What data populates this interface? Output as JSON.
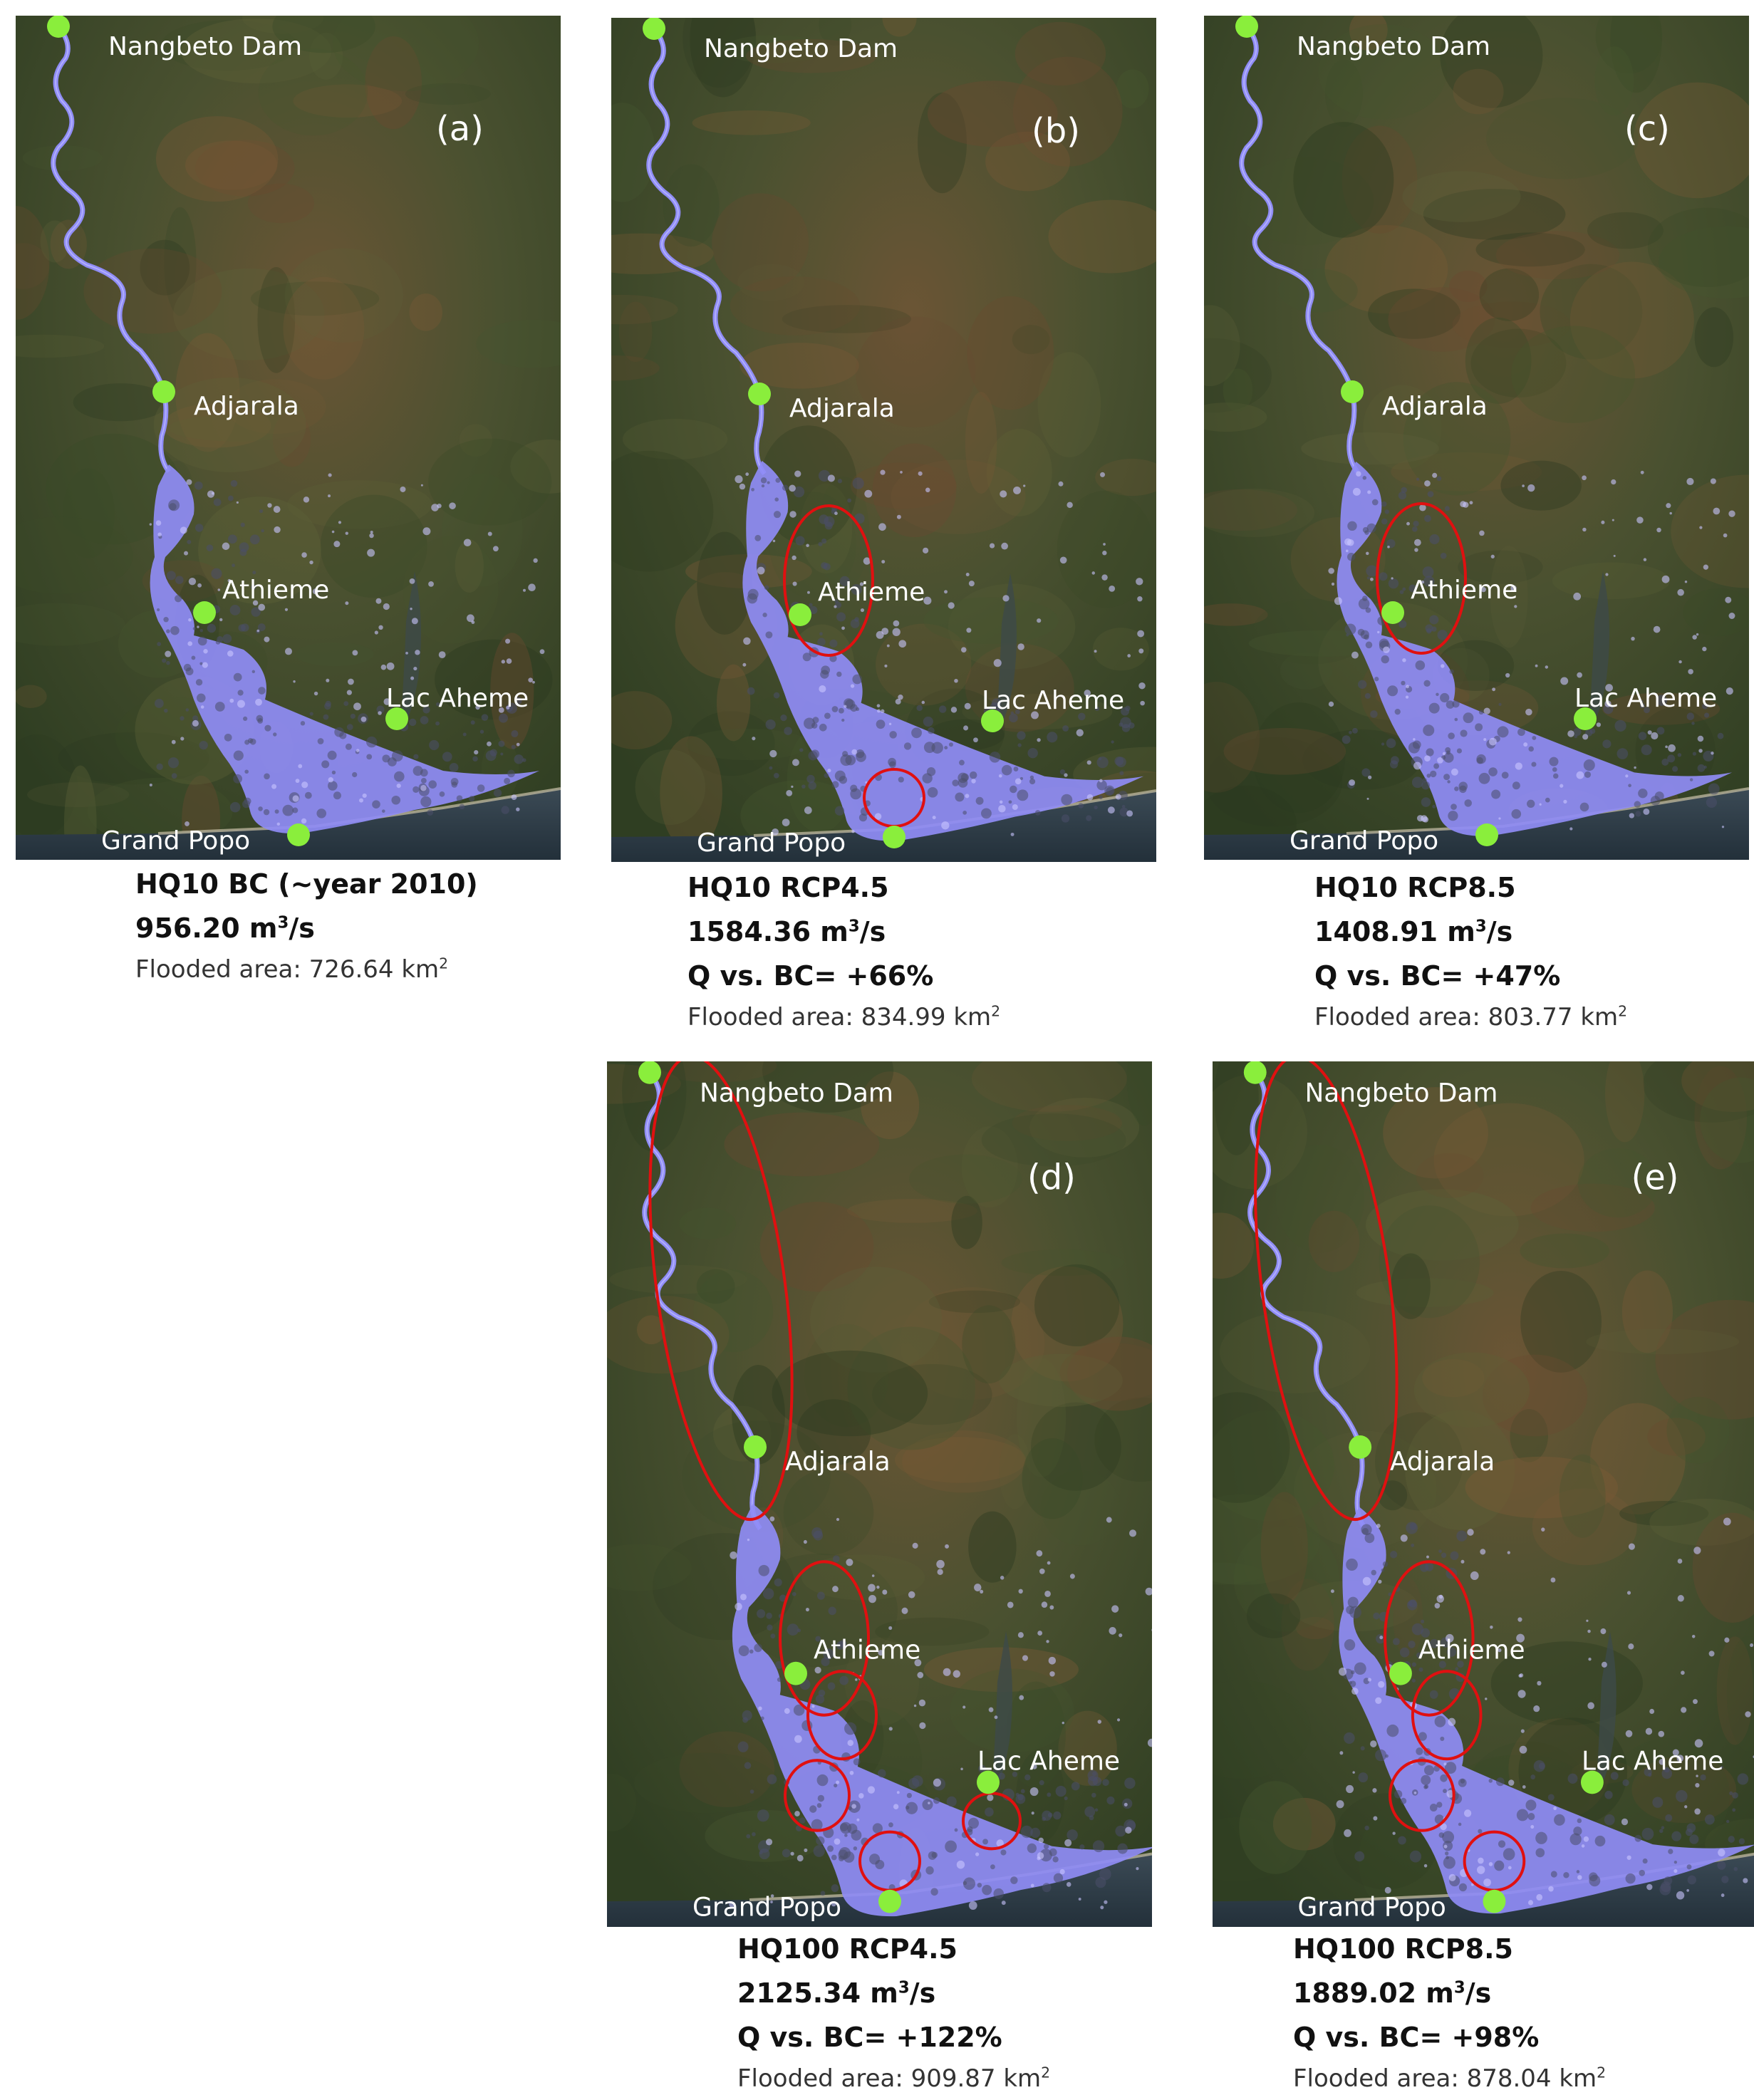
{
  "panels": [
    {
      "id": "a",
      "tag": "(a)",
      "places": {
        "dam": "Nangbeto Dam",
        "adjarala": "Adjarala",
        "athieme": "Athieme",
        "lac": "Lac Aheme",
        "popo": "Grand Popo"
      },
      "caption": {
        "scenario": "HQ10 BC (~year 2010)",
        "discharge": "956.20 m",
        "discharge_unit": "3",
        "discharge_suffix": "/s",
        "change": "",
        "area": "Flooded area: 726.64 km",
        "area_unit": "2"
      },
      "highlights": []
    },
    {
      "id": "b",
      "tag": "(b)",
      "places": {
        "dam": "Nangbeto Dam",
        "adjarala": "Adjarala",
        "athieme": "Athieme",
        "lac": "Lac Aheme",
        "popo": "Grand Popo"
      },
      "caption": {
        "scenario": "HQ10 RCP4.5",
        "discharge": "1584.36 m",
        "discharge_unit": "3",
        "discharge_suffix": "/s",
        "change": "Q vs. BC= +66%",
        "area": "Flooded area: 834.99 km",
        "area_unit": "2"
      },
      "highlights": [
        "athieme-ring",
        "popo-ring"
      ]
    },
    {
      "id": "c",
      "tag": "(c)",
      "places": {
        "dam": "Nangbeto Dam",
        "adjarala": "Adjarala",
        "athieme": "Athieme",
        "lac": "Lac Aheme",
        "popo": "Grand Popo"
      },
      "caption": {
        "scenario": "HQ10 RCP8.5",
        "discharge": "1408.91 m",
        "discharge_unit": "3",
        "discharge_suffix": "/s",
        "change": "Q vs. BC= +47%",
        "area": "Flooded area: 803.77 km",
        "area_unit": "2"
      },
      "highlights": [
        "athieme-ring"
      ]
    },
    {
      "id": "d",
      "tag": "(d)",
      "places": {
        "dam": "Nangbeto Dam",
        "adjarala": "Adjarala",
        "athieme": "Athieme",
        "lac": "Lac Aheme",
        "popo": "Grand Popo"
      },
      "caption": {
        "scenario": "HQ100 RCP4.5",
        "discharge": "2125.34 m",
        "discharge_unit": "3",
        "discharge_suffix": "/s",
        "change": "Q vs. BC= +122%",
        "area": "Flooded area: 909.87 km",
        "area_unit": "2"
      },
      "highlights": [
        "upper-ring",
        "athieme-ring",
        "mid-ring",
        "west-ring",
        "popo-ring",
        "lac-ring"
      ]
    },
    {
      "id": "e",
      "tag": "(e)",
      "places": {
        "dam": "Nangbeto Dam",
        "adjarala": "Adjarala",
        "athieme": "Athieme",
        "lac": "Lac Aheme",
        "popo": "Grand Popo"
      },
      "caption": {
        "scenario": "HQ100 RCP8.5",
        "discharge": "1889.02 m",
        "discharge_unit": "3",
        "discharge_suffix": "/s",
        "change": "Q vs. BC= +98%",
        "area": "Flooded area: 878.04 km",
        "area_unit": "2"
      },
      "highlights": [
        "upper-ring",
        "athieme-ring",
        "mid-ring",
        "west-ring",
        "popo-ring"
      ]
    }
  ],
  "colors": {
    "flood": "#8f8cf5",
    "marker": "#8aee3c",
    "ring": "#e01010",
    "label": "#ffffff"
  }
}
